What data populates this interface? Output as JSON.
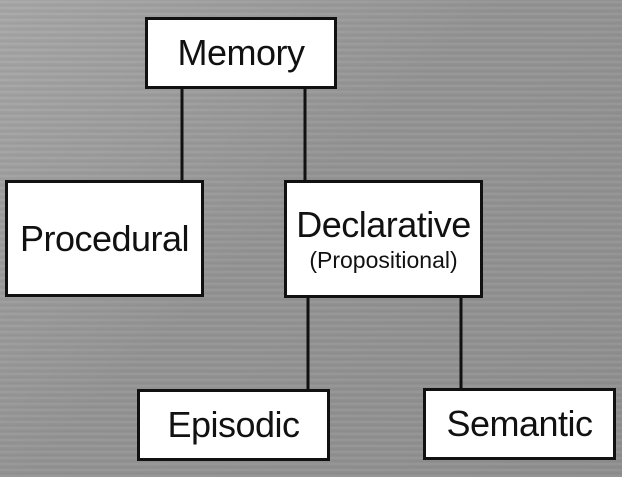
{
  "diagram": {
    "root": {
      "label": "Memory"
    },
    "procedural": {
      "label": "Procedural"
    },
    "declarative": {
      "label": "Declarative",
      "sublabel": "(Propositional)"
    },
    "episodic": {
      "label": "Episodic"
    },
    "semantic": {
      "label": "Semantic"
    }
  }
}
